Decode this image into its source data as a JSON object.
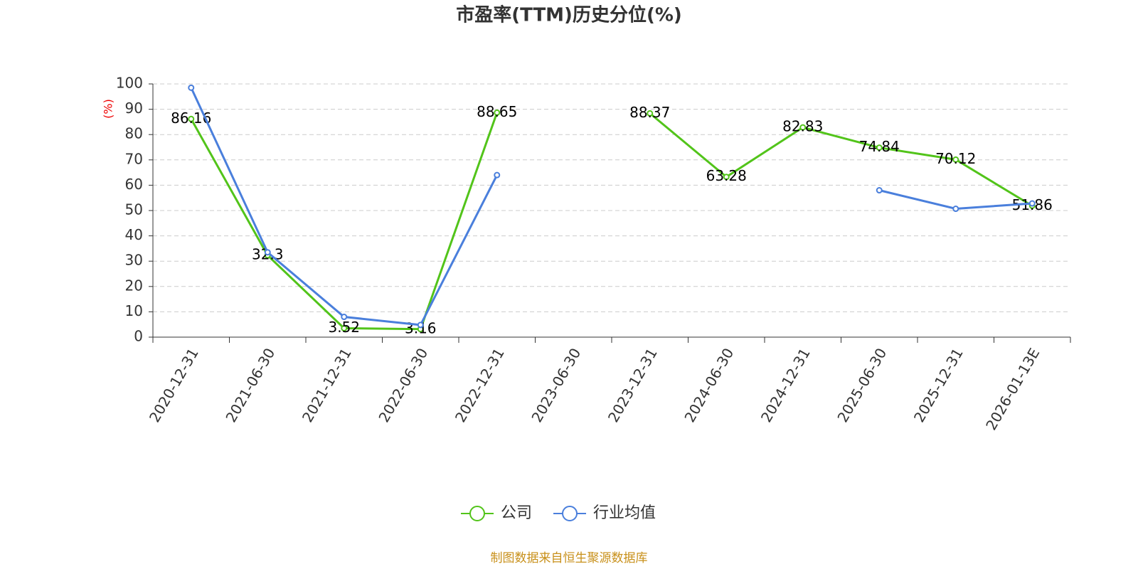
{
  "chart_data": {
    "type": "line",
    "title": "市盈率(TTM)历史分位(%)",
    "y_label": "(%)",
    "source": "制图数据来自恒生聚源数据库",
    "categories": [
      "2020-12-31",
      "2021-06-30",
      "2021-12-31",
      "2022-06-30",
      "2022-12-31",
      "2023-06-30",
      "2023-12-31",
      "2024-06-30",
      "2024-12-31",
      "2025-06-30",
      "2025-12-31",
      "2026-01-13E"
    ],
    "series": [
      {
        "name": "公司",
        "color": "#52c41a",
        "values": [
          86.16,
          32.3,
          3.52,
          3.16,
          88.65,
          null,
          88.37,
          63.28,
          82.83,
          74.84,
          70.12,
          51.86
        ],
        "show_labels": true
      },
      {
        "name": "行业均值",
        "color": "#4a7fdc",
        "values": [
          98.5,
          33.5,
          8,
          4.8,
          64,
          null,
          null,
          null,
          null,
          58,
          50.7,
          52.8
        ],
        "show_labels": false
      }
    ],
    "ylim": [
      0,
      100
    ],
    "yticks": [
      0,
      10,
      20,
      30,
      40,
      50,
      60,
      70,
      80,
      90,
      100
    ],
    "grid": true
  }
}
